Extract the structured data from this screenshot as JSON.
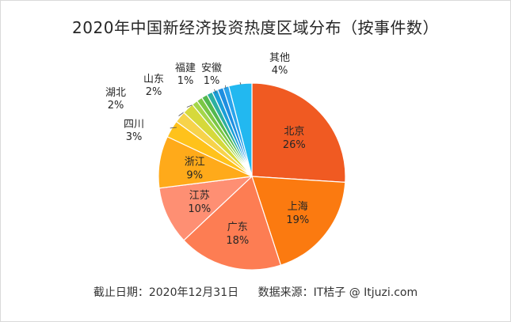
{
  "chart_data": {
    "type": "pie",
    "title": "2020年中国新经济投资热度区域分布（按事件数）",
    "slices": [
      {
        "name": "北京",
        "value": 26,
        "label": "26%",
        "color": "#f05a22",
        "label_pos": "inside"
      },
      {
        "name": "上海",
        "value": 19,
        "label": "19%",
        "color": "#fb7a10",
        "label_pos": "inside"
      },
      {
        "name": "广东",
        "value": 18,
        "label": "18%",
        "color": "#fd7d53",
        "label_pos": "inside"
      },
      {
        "name": "江苏",
        "value": 10,
        "label": "10%",
        "color": "#fe8f73",
        "label_pos": "inside"
      },
      {
        "name": "浙江",
        "value": 9,
        "label": "9%",
        "color": "#ffaa1a",
        "label_pos": "inside"
      },
      {
        "name": "四川",
        "value": 3,
        "label": "3%",
        "color": "#ffc21b",
        "label_pos": "outside"
      },
      {
        "name": "湖北",
        "value": 2,
        "label": "2%",
        "color": "#f7d34a",
        "label_pos": "outside"
      },
      {
        "name": "山东",
        "value": 2,
        "label": "2%",
        "color": "#d6d93b",
        "label_pos": "outside"
      },
      {
        "name": "",
        "value": 1,
        "label": "",
        "color": "#a4d64a"
      },
      {
        "name": "",
        "value": 1,
        "label": "",
        "color": "#7bc745"
      },
      {
        "name": "",
        "value": 1,
        "label": "",
        "color": "#53b84f"
      },
      {
        "name": "",
        "value": 1,
        "label": "",
        "color": "#2cb0a0"
      },
      {
        "name": "福建",
        "value": 1,
        "label": "1%",
        "color": "#1a9fd8",
        "label_pos": "outside"
      },
      {
        "name": "",
        "value": 1,
        "label": "",
        "color": "#1e8ee0"
      },
      {
        "name": "安徽",
        "value": 1,
        "label": "1%",
        "color": "#2aa4ec",
        "label_pos": "outside"
      },
      {
        "name": "其他",
        "value": 4,
        "label": "4%",
        "color": "#22b8f0",
        "label_pos": "outside"
      }
    ]
  },
  "footer": {
    "date_text": "截止日期：2020年12月31日",
    "source_text": "数据来源：IT桔子 @ Itjuzi.com"
  }
}
